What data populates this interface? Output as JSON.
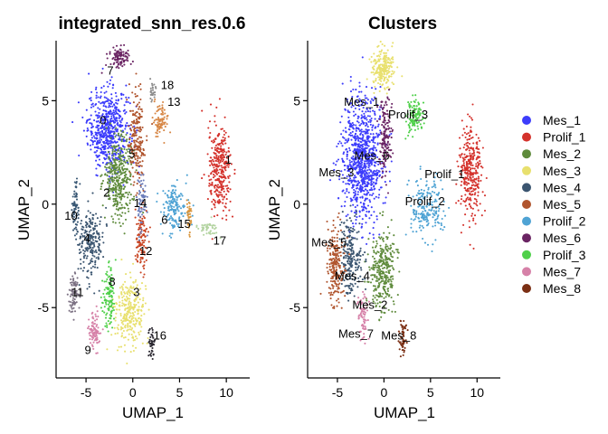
{
  "chart_data": [
    {
      "type": "scatter",
      "title": "integrated_snn_res.0.6",
      "xlabel": "UMAP_1",
      "ylabel": "UMAP_2",
      "xlim": [
        -8.2,
        12.5
      ],
      "ylim": [
        -8.4,
        7.9
      ],
      "x_ticks": [
        -5,
        0,
        5,
        10
      ],
      "y_ticks": [
        -5,
        0,
        5
      ],
      "x_tick_labels": [
        "-5",
        "0",
        "5",
        "10"
      ],
      "y_tick_labels": [
        "-5",
        "0",
        "5"
      ],
      "grid": false,
      "legend": "none",
      "clusters": [
        {
          "label": "0",
          "color": "#3a3afc",
          "x": -2.6,
          "y": 3.6,
          "sx": 2.0,
          "sy": 1.8,
          "n": 600,
          "lx": -3.2,
          "ly": 4.0
        },
        {
          "label": "1",
          "color": "#d4322c",
          "x": 9.3,
          "y": 1.6,
          "sx": 1.1,
          "sy": 2.0,
          "n": 320,
          "lx": 10.2,
          "ly": 2.1
        },
        {
          "label": "2",
          "color": "#5f8b3c",
          "x": -1.5,
          "y": 1.3,
          "sx": 1.4,
          "sy": 1.8,
          "n": 380,
          "lx": -2.8,
          "ly": 0.5
        },
        {
          "label": "3",
          "color": "#e8e06e",
          "x": -0.3,
          "y": -5.2,
          "sx": 1.5,
          "sy": 1.4,
          "n": 280,
          "lx": 0.4,
          "ly": -4.3
        },
        {
          "label": "4",
          "color": "#3b5570",
          "x": -4.5,
          "y": -1.8,
          "sx": 1.2,
          "sy": 1.5,
          "n": 220,
          "lx": -4.9,
          "ly": -1.7
        },
        {
          "label": "5",
          "color": "#b0552e",
          "x": 0.4,
          "y": 3.1,
          "sx": 0.8,
          "sy": 2.0,
          "n": 200,
          "lx": -0.1,
          "ly": 2.4
        },
        {
          "label": "6",
          "color": "#4fa3d4",
          "x": 4.4,
          "y": -0.1,
          "sx": 1.1,
          "sy": 1.2,
          "n": 160,
          "lx": 3.4,
          "ly": -0.8
        },
        {
          "label": "7",
          "color": "#6a2463",
          "x": -1.4,
          "y": 7.1,
          "sx": 1.1,
          "sy": 0.45,
          "n": 100,
          "lx": -2.4,
          "ly": 6.4
        },
        {
          "label": "8",
          "color": "#4fd04a",
          "x": -2.5,
          "y": -4.6,
          "sx": 0.6,
          "sy": 1.4,
          "n": 120,
          "lx": -2.2,
          "ly": -3.8
        },
        {
          "label": "9",
          "color": "#d681a8",
          "x": -4.1,
          "y": -6.2,
          "sx": 0.6,
          "sy": 0.8,
          "n": 90,
          "lx": -4.8,
          "ly": -7.1
        },
        {
          "label": "10",
          "color": "#385774",
          "x": -6.2,
          "y": -0.2,
          "sx": 0.4,
          "sy": 1.2,
          "n": 70,
          "lx": -6.6,
          "ly": -0.6
        },
        {
          "label": "11",
          "color": "#7c7183",
          "x": -6.3,
          "y": -4.3,
          "sx": 0.5,
          "sy": 0.9,
          "n": 80,
          "lx": -5.9,
          "ly": -4.3
        },
        {
          "label": "12",
          "color": "#c84321",
          "x": 0.9,
          "y": -1.8,
          "sx": 0.6,
          "sy": 1.4,
          "n": 110,
          "lx": 1.4,
          "ly": -2.3
        },
        {
          "label": "13",
          "color": "#d78746",
          "x": 3.0,
          "y": 4.1,
          "sx": 0.7,
          "sy": 0.6,
          "n": 90,
          "lx": 4.4,
          "ly": 4.9
        },
        {
          "label": "14",
          "color": "#6b7dba",
          "x": 0.9,
          "y": 0.2,
          "sx": 0.5,
          "sy": 1.0,
          "n": 70,
          "lx": 0.8,
          "ly": 0.0
        },
        {
          "label": "15",
          "color": "#d9963e",
          "x": 6.0,
          "y": -0.5,
          "sx": 0.3,
          "sy": 0.7,
          "n": 40,
          "lx": 5.5,
          "ly": -1.0
        },
        {
          "label": "16",
          "color": "#2a2730",
          "x": 2.0,
          "y": -6.6,
          "sx": 0.3,
          "sy": 0.7,
          "n": 45,
          "lx": 2.9,
          "ly": -6.4
        },
        {
          "label": "17",
          "color": "#b4d4a2",
          "x": 8.0,
          "y": -1.2,
          "sx": 0.9,
          "sy": 0.35,
          "n": 50,
          "lx": 9.3,
          "ly": -1.8
        },
        {
          "label": "18",
          "color": "#8a8a8a",
          "x": 2.1,
          "y": 5.5,
          "sx": 0.3,
          "sy": 0.4,
          "n": 25,
          "lx": 3.7,
          "ly": 5.7
        }
      ]
    },
    {
      "type": "scatter",
      "title": "Clusters",
      "xlabel": "UMAP_1",
      "ylabel": "UMAP_2",
      "xlim": [
        -8.2,
        12.5
      ],
      "ylim": [
        -8.4,
        7.9
      ],
      "x_ticks": [
        -5,
        0,
        5,
        10
      ],
      "y_ticks": [
        -5,
        0,
        5
      ],
      "x_tick_labels": [
        "-5",
        "0",
        "5",
        "10"
      ],
      "y_tick_labels": [
        "-5",
        "0",
        "5"
      ],
      "grid": false,
      "legend": "right",
      "clusters": [
        {
          "label": "Mes_1",
          "color": "#3d3dfb",
          "x": -2.3,
          "y": 2.2,
          "sx": 2.0,
          "sy": 2.6,
          "n": 900,
          "lx": -2.4,
          "ly": 4.9
        },
        {
          "label": "Prolif_1",
          "color": "#d4322c",
          "x": 9.3,
          "y": 1.6,
          "sx": 1.1,
          "sy": 2.0,
          "n": 320,
          "lx": 6.5,
          "ly": 1.4
        },
        {
          "label": "Mes_2",
          "color": "#5f8b3c",
          "x": -0.1,
          "y": -3.4,
          "sx": 1.3,
          "sy": 1.8,
          "n": 320,
          "lx": -1.5,
          "ly": -4.9
        },
        {
          "label": "Mes_3",
          "color": "#e8e06e",
          "x": -0.1,
          "y": 6.6,
          "sx": 1.2,
          "sy": 0.9,
          "n": 220,
          "lx": -5.1,
          "ly": 1.5
        },
        {
          "label": "Mes_4",
          "color": "#3b5570",
          "x": -3.6,
          "y": -2.6,
          "sx": 1.1,
          "sy": 1.7,
          "n": 220,
          "lx": -3.4,
          "ly": -3.5
        },
        {
          "label": "Mes_5",
          "color": "#b0552e",
          "x": -5.3,
          "y": -2.9,
          "sx": 0.9,
          "sy": 1.7,
          "n": 220,
          "lx": -5.9,
          "ly": -1.9
        },
        {
          "label": "Prolif_2",
          "color": "#4fa3d4",
          "x": 4.6,
          "y": -0.2,
          "sx": 1.5,
          "sy": 1.3,
          "n": 200,
          "lx": 4.4,
          "ly": 0.1
        },
        {
          "label": "Mes_6",
          "color": "#6a2463",
          "x": 0.2,
          "y": 3.4,
          "sx": 0.6,
          "sy": 1.7,
          "n": 150,
          "lx": -1.3,
          "ly": 2.3
        },
        {
          "label": "Prolif_3",
          "color": "#4fd04a",
          "x": 3.3,
          "y": 4.2,
          "sx": 0.8,
          "sy": 0.8,
          "n": 110,
          "lx": 2.6,
          "ly": 4.3
        },
        {
          "label": "Mes_7",
          "color": "#d681a8",
          "x": -2.3,
          "y": -5.4,
          "sx": 0.5,
          "sy": 1.0,
          "n": 70,
          "lx": -3.0,
          "ly": -6.3
        },
        {
          "label": "Mes_8",
          "color": "#7b2f14",
          "x": 2.0,
          "y": -6.4,
          "sx": 0.4,
          "sy": 0.8,
          "n": 55,
          "lx": 1.6,
          "ly": -6.4
        }
      ]
    }
  ],
  "legend": {
    "items": [
      {
        "label": "Mes_1",
        "color": "#3d3dfb"
      },
      {
        "label": "Prolif_1",
        "color": "#d4322c"
      },
      {
        "label": "Mes_2",
        "color": "#5f8b3c"
      },
      {
        "label": "Mes_3",
        "color": "#e8e06e"
      },
      {
        "label": "Mes_4",
        "color": "#3b5570"
      },
      {
        "label": "Mes_5",
        "color": "#b0552e"
      },
      {
        "label": "Prolif_2",
        "color": "#4fa3d4"
      },
      {
        "label": "Mes_6",
        "color": "#6a2463"
      },
      {
        "label": "Prolif_3",
        "color": "#4fd04a"
      },
      {
        "label": "Mes_7",
        "color": "#d681a8"
      },
      {
        "label": "Mes_8",
        "color": "#7b2f14"
      }
    ]
  }
}
